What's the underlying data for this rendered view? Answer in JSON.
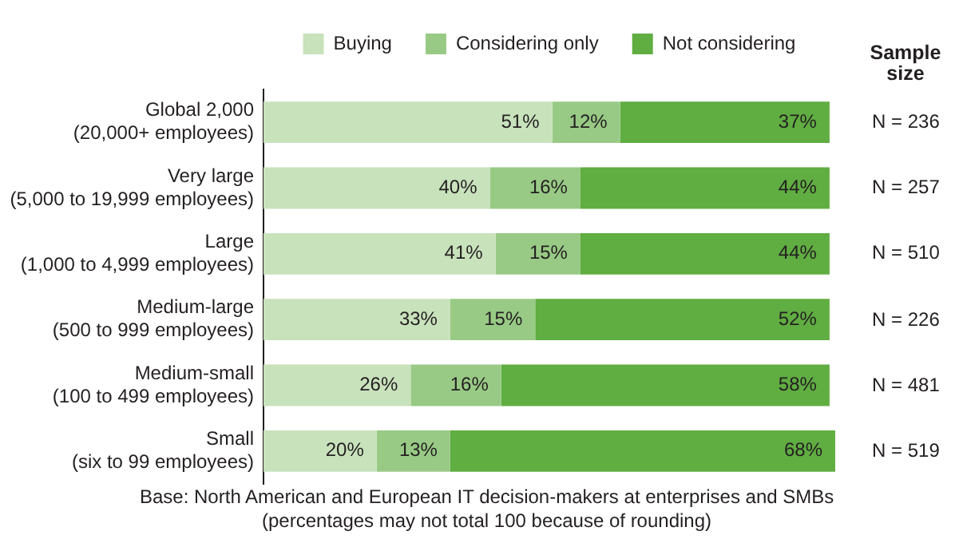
{
  "chart_data": {
    "type": "bar",
    "orientation": "horizontal",
    "stacked": true,
    "legend": "top",
    "categories": [
      "Global 2,000\n(20,000+ employees)",
      "Very large\n(5,000 to 19,999 employees)",
      "Large\n(1,000 to 4,999 employees)",
      "Medium-large\n(500 to 999 employees)",
      "Medium-small\n(100 to 499 employees)",
      "Small\n(six to 99 employees)"
    ],
    "series": [
      {
        "name": "Buying",
        "color": "#c8e2bc",
        "values": [
          51,
          40,
          41,
          33,
          26,
          20
        ],
        "value_labels": [
          "51%",
          "40%",
          "41%",
          "33%",
          "26%",
          "20%"
        ]
      },
      {
        "name": "Considering only",
        "color": "#98ca85",
        "values": [
          12,
          16,
          15,
          15,
          16,
          13
        ],
        "value_labels": [
          "12%",
          "16%",
          "15%",
          "15%",
          "16%",
          "13%"
        ]
      },
      {
        "name": "Not considering",
        "color": "#60ad42",
        "values": [
          37,
          44,
          44,
          52,
          58,
          68
        ],
        "value_labels": [
          "37%",
          "44%",
          "44%",
          "52%",
          "58%",
          "68%"
        ]
      }
    ],
    "annotations": [
      "Sample size",
      "N = 236",
      "N = 257",
      "N = 510",
      "N = 226",
      "N = 481",
      "N = 519",
      "Base: North American and European IT decision-makers at enterprises and SMBs",
      "(percentages may not total 100 because of rounding)"
    ]
  }
}
